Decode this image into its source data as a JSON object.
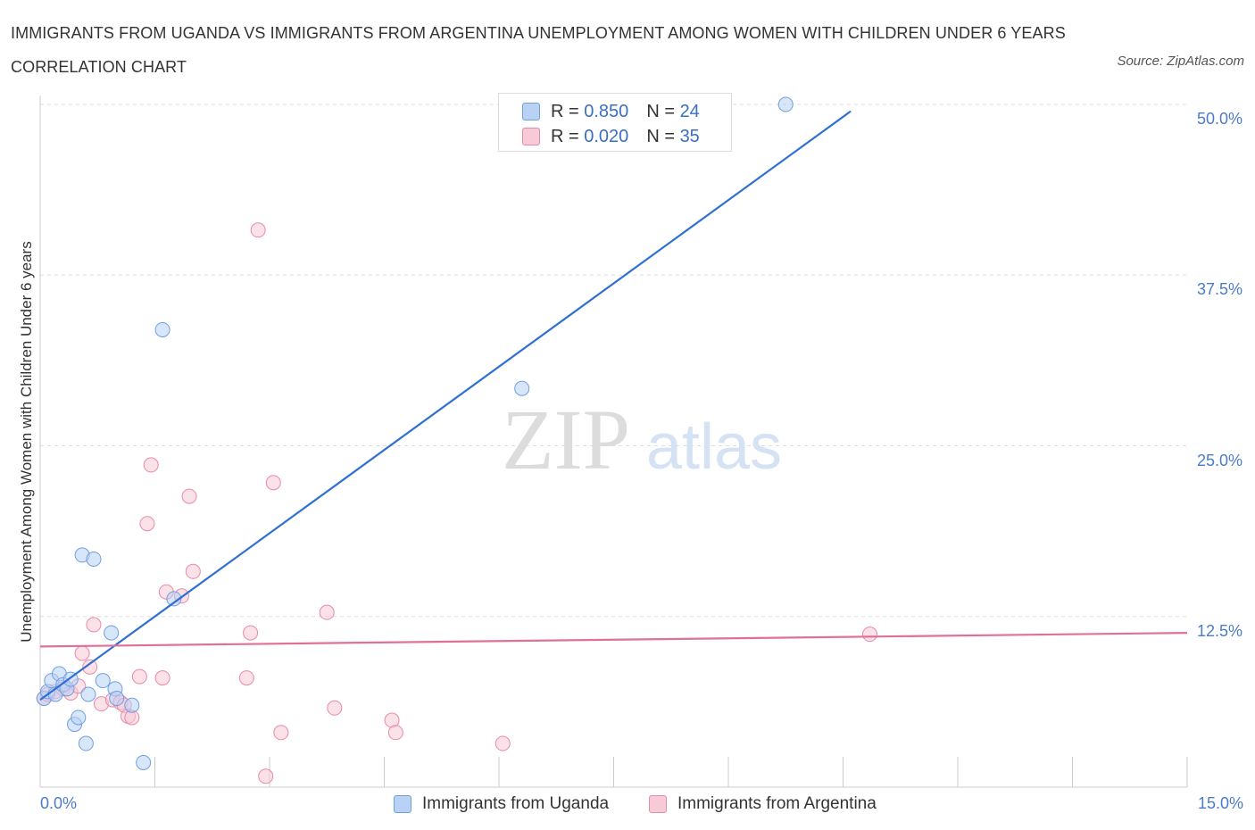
{
  "colors": {
    "blue_fill": "#b8d2f5",
    "blue_stroke": "#6f9fe0",
    "blue_line": "#2f6fd1",
    "pink_fill": "#f8c9d6",
    "pink_stroke": "#e88aa8",
    "pink_line": "#e0709a",
    "grid": "#dddddd",
    "tick_text": "#4a7cc9"
  },
  "watermark": {
    "zip": "ZIP",
    "atlas": "atlas"
  },
  "chart_data": {
    "type": "scatter",
    "title": "IMMIGRANTS FROM UGANDA VS IMMIGRANTS FROM ARGENTINA UNEMPLOYMENT AMONG WOMEN WITH CHILDREN UNDER 6 YEARS CORRELATION CHART",
    "source": "Source: ZipAtlas.com",
    "xlabel": "",
    "ylabel": "Unemployment Among Women with Children Under 6 years",
    "xlim": [
      0,
      15
    ],
    "ylim": [
      0,
      50
    ],
    "x_tick_labels": [
      {
        "value": 0,
        "label": "0.0%"
      },
      {
        "value": 15,
        "label": "15.0%"
      }
    ],
    "y_tick_labels": [
      {
        "value": 12.5,
        "label": "12.5%"
      },
      {
        "value": 25,
        "label": "25.0%"
      },
      {
        "value": 37.5,
        "label": "37.5%"
      },
      {
        "value": 50,
        "label": "50.0%"
      }
    ],
    "legend": [
      {
        "r_label": "R =",
        "r_value": "0.850",
        "n_label": "N =",
        "n_value": "24"
      },
      {
        "r_label": "R =",
        "r_value": "0.020",
        "n_label": "N =",
        "n_value": "35"
      }
    ],
    "series": [
      {
        "name": "Immigrants from Uganda",
        "color": "blue",
        "trend": {
          "x": [
            0.0,
            10.6
          ],
          "y": [
            6.4,
            49.5
          ]
        },
        "points": [
          {
            "x": 0.05,
            "y": 6.5
          },
          {
            "x": 0.1,
            "y": 7.0
          },
          {
            "x": 0.15,
            "y": 7.8
          },
          {
            "x": 0.2,
            "y": 6.8
          },
          {
            "x": 0.25,
            "y": 8.3
          },
          {
            "x": 0.3,
            "y": 7.5
          },
          {
            "x": 0.35,
            "y": 7.2
          },
          {
            "x": 0.4,
            "y": 7.9
          },
          {
            "x": 0.45,
            "y": 4.6
          },
          {
            "x": 0.5,
            "y": 5.1
          },
          {
            "x": 0.55,
            "y": 17.0
          },
          {
            "x": 0.6,
            "y": 3.2
          },
          {
            "x": 0.63,
            "y": 6.8
          },
          {
            "x": 0.7,
            "y": 16.7
          },
          {
            "x": 0.82,
            "y": 7.8
          },
          {
            "x": 0.98,
            "y": 7.2
          },
          {
            "x": 0.93,
            "y": 11.3
          },
          {
            "x": 1.0,
            "y": 6.5
          },
          {
            "x": 1.2,
            "y": 6.0
          },
          {
            "x": 1.35,
            "y": 1.8
          },
          {
            "x": 1.6,
            "y": 33.5
          },
          {
            "x": 1.75,
            "y": 13.8
          },
          {
            "x": 6.3,
            "y": 29.2
          },
          {
            "x": 9.75,
            "y": 50.0
          }
        ]
      },
      {
        "name": "Immigrants from Argentina",
        "color": "pink",
        "trend": {
          "x": [
            0.0,
            15.0
          ],
          "y": [
            10.3,
            11.3
          ]
        },
        "points": [
          {
            "x": 0.05,
            "y": 6.5
          },
          {
            "x": 0.1,
            "y": 6.8
          },
          {
            "x": 0.2,
            "y": 7.0
          },
          {
            "x": 0.3,
            "y": 7.2
          },
          {
            "x": 0.4,
            "y": 6.9
          },
          {
            "x": 0.5,
            "y": 7.4
          },
          {
            "x": 0.55,
            "y": 9.8
          },
          {
            "x": 0.65,
            "y": 8.8
          },
          {
            "x": 0.7,
            "y": 11.9
          },
          {
            "x": 0.8,
            "y": 6.1
          },
          {
            "x": 0.95,
            "y": 6.4
          },
          {
            "x": 1.05,
            "y": 6.2
          },
          {
            "x": 1.1,
            "y": 6.0
          },
          {
            "x": 1.15,
            "y": 5.2
          },
          {
            "x": 1.2,
            "y": 5.1
          },
          {
            "x": 1.3,
            "y": 8.1
          },
          {
            "x": 1.4,
            "y": 19.3
          },
          {
            "x": 1.45,
            "y": 23.6
          },
          {
            "x": 1.6,
            "y": 8.0
          },
          {
            "x": 1.65,
            "y": 14.3
          },
          {
            "x": 1.85,
            "y": 14.0
          },
          {
            "x": 1.95,
            "y": 21.3
          },
          {
            "x": 2.0,
            "y": 15.8
          },
          {
            "x": 2.7,
            "y": 8.0
          },
          {
            "x": 2.75,
            "y": 11.3
          },
          {
            "x": 2.85,
            "y": 40.8
          },
          {
            "x": 2.95,
            "y": 0.8
          },
          {
            "x": 3.05,
            "y": 22.3
          },
          {
            "x": 3.15,
            "y": 4.0
          },
          {
            "x": 3.75,
            "y": 12.8
          },
          {
            "x": 3.85,
            "y": 5.8
          },
          {
            "x": 4.6,
            "y": 4.9
          },
          {
            "x": 4.65,
            "y": 4.0
          },
          {
            "x": 6.05,
            "y": 3.2
          },
          {
            "x": 10.85,
            "y": 11.2
          }
        ]
      }
    ]
  }
}
